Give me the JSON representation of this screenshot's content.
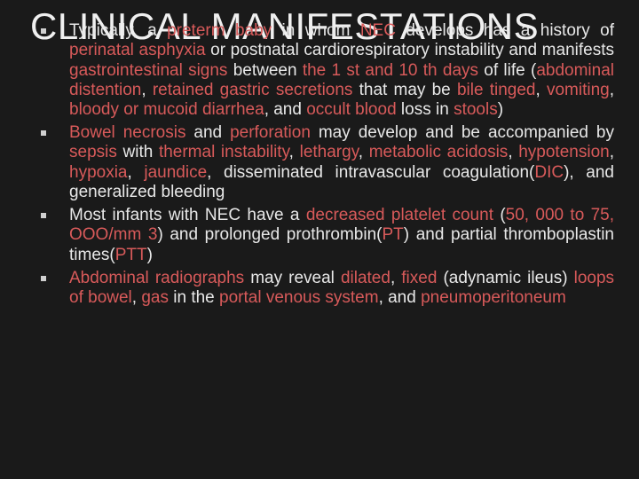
{
  "colors": {
    "background": "#1a1a1a",
    "text": "#e8e8e8",
    "highlight": "#d85a5a"
  },
  "title": "CLINICAL MANIFESTATIONS",
  "bullets": [
    {
      "spans": [
        {
          "t": "Typically, a ",
          "hl": false
        },
        {
          "t": "preterm baby ",
          "hl": true
        },
        {
          "t": "in whom ",
          "hl": false
        },
        {
          "t": "NEC ",
          "hl": true
        },
        {
          "t": "develops has a history of ",
          "hl": false
        },
        {
          "t": "perinatal asphyxia ",
          "hl": true
        },
        {
          "t": "or postnatal cardiorespiratory instability and manifests ",
          "hl": false
        },
        {
          "t": "gastrointestinal signs ",
          "hl": true
        },
        {
          "t": "between ",
          "hl": false
        },
        {
          "t": "the 1 st and 10 th days ",
          "hl": true
        },
        {
          "t": "of life (",
          "hl": false
        },
        {
          "t": "abdominal distention",
          "hl": true
        },
        {
          "t": ", ",
          "hl": false
        },
        {
          "t": "retained gastric secretions ",
          "hl": true
        },
        {
          "t": "that may be ",
          "hl": false
        },
        {
          "t": "bile tinged",
          "hl": true
        },
        {
          "t": ", ",
          "hl": false
        },
        {
          "t": "vomiting",
          "hl": true
        },
        {
          "t": ", ",
          "hl": false
        },
        {
          "t": "bloody or mucoid diarrhea",
          "hl": true
        },
        {
          "t": ", and ",
          "hl": false
        },
        {
          "t": "occult blood ",
          "hl": true
        },
        {
          "t": "loss in ",
          "hl": false
        },
        {
          "t": "stools",
          "hl": true
        },
        {
          "t": ")",
          "hl": false
        }
      ]
    },
    {
      "spans": [
        {
          "t": "  ",
          "hl": false
        },
        {
          "t": "Bowel necrosis ",
          "hl": true
        },
        {
          "t": "and ",
          "hl": false
        },
        {
          "t": "perforation ",
          "hl": true
        },
        {
          "t": "may develop and be accompanied by ",
          "hl": false
        },
        {
          "t": "sepsis ",
          "hl": true
        },
        {
          "t": "with ",
          "hl": false
        },
        {
          "t": "thermal instability",
          "hl": true
        },
        {
          "t": ", ",
          "hl": false
        },
        {
          "t": "lethargy",
          "hl": true
        },
        {
          "t": ", ",
          "hl": false
        },
        {
          "t": "metabolic acidosis",
          "hl": true
        },
        {
          "t": ", ",
          "hl": false
        },
        {
          "t": "hypotension",
          "hl": true
        },
        {
          "t": ", ",
          "hl": false
        },
        {
          "t": "hypoxia",
          "hl": true
        },
        {
          "t": ", ",
          "hl": false
        },
        {
          "t": "jaundice",
          "hl": true
        },
        {
          "t": ", disseminated intravascular coagulation(",
          "hl": false
        },
        {
          "t": "DIC",
          "hl": true
        },
        {
          "t": "), and generalized bleeding",
          "hl": false
        }
      ]
    },
    {
      "spans": [
        {
          "t": "  Most infants with NEC have a ",
          "hl": false
        },
        {
          "t": "decreased platelet count ",
          "hl": true
        },
        {
          "t": "(",
          "hl": false
        },
        {
          "t": "50, 000 to 75, OOO/mm 3",
          "hl": true
        },
        {
          "t": ") and prolonged prothrombin(",
          "hl": false
        },
        {
          "t": "PT",
          "hl": true
        },
        {
          "t": ") and partial thromboplastin times(",
          "hl": false
        },
        {
          "t": "PTT",
          "hl": true
        },
        {
          "t": ")",
          "hl": false
        }
      ]
    },
    {
      "spans": [
        {
          "t": "  ",
          "hl": false
        },
        {
          "t": "Abdominal radiographs ",
          "hl": true
        },
        {
          "t": "may reveal ",
          "hl": false
        },
        {
          "t": "dilated",
          "hl": true
        },
        {
          "t": ", ",
          "hl": false
        },
        {
          "t": "fixed ",
          "hl": true
        },
        {
          "t": "(adynamic ileus) ",
          "hl": false
        },
        {
          "t": "loops of bowel",
          "hl": true
        },
        {
          "t": ", ",
          "hl": false
        },
        {
          "t": "gas ",
          "hl": true
        },
        {
          "t": "in the ",
          "hl": false
        },
        {
          "t": "portal venous system",
          "hl": true
        },
        {
          "t": ", and ",
          "hl": false
        },
        {
          "t": "pneumoperitoneum",
          "hl": true
        }
      ]
    }
  ]
}
